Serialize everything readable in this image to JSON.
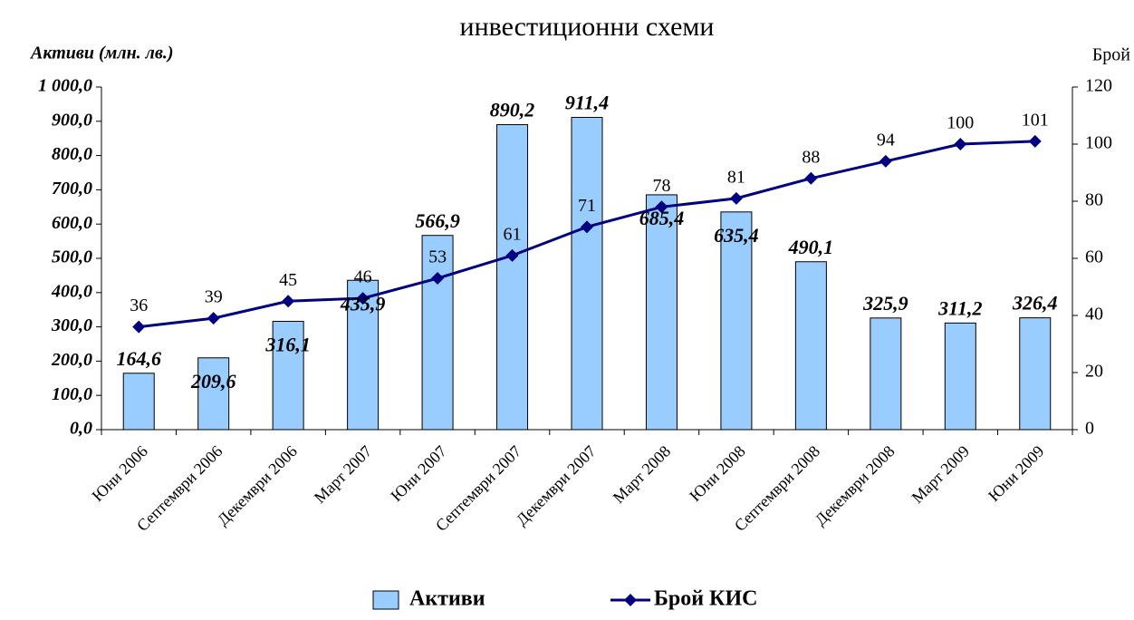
{
  "chart_data": {
    "type": "bar_line",
    "title": "инвестиционни схеми",
    "y_label": "Активи (млн. лв.)",
    "y2_label": "Брой",
    "categories": [
      "Юни 2006",
      "Септември 2006",
      "Декември 2006",
      "Март 2007",
      "Юни 2007",
      "Септември 2007",
      "Декември 2007",
      "Март 2008",
      "Юни 2008",
      "Септември 2008",
      "Декември 2008",
      "Март 2009",
      "Юни 2009"
    ],
    "series": [
      {
        "name": "Активи",
        "type": "bar",
        "color": "#99ccff",
        "values": [
          164.6,
          209.6,
          316.1,
          435.9,
          566.9,
          890.2,
          911.4,
          685.4,
          635.4,
          490.1,
          325.9,
          311.2,
          326.4
        ],
        "value_labels": [
          "164,6",
          "209,6",
          "316,1",
          "435,9",
          "566,9",
          "890,2",
          "911,4",
          "685,4",
          "635,4",
          "490,1",
          "325,9",
          "311,2",
          "326,4"
        ]
      },
      {
        "name": "Брой КИС",
        "type": "line",
        "axis": "y2",
        "color": "#000080",
        "values": [
          36,
          39,
          45,
          46,
          53,
          61,
          71,
          78,
          81,
          88,
          94,
          100,
          101
        ]
      }
    ],
    "ylim": [
      0,
      1000
    ],
    "yticks": [
      {
        "value": 0,
        "label": "0,0"
      },
      {
        "value": 100,
        "label": "100,0"
      },
      {
        "value": 200,
        "label": "200,0"
      },
      {
        "value": 300,
        "label": "300,0"
      },
      {
        "value": 400,
        "label": "400,0"
      },
      {
        "value": 500,
        "label": "500,0"
      },
      {
        "value": 600,
        "label": "600,0"
      },
      {
        "value": 700,
        "label": "700,0"
      },
      {
        "value": 800,
        "label": "800,0"
      },
      {
        "value": 900,
        "label": "900,0"
      },
      {
        "value": 1000,
        "label": "1 000,0"
      }
    ],
    "y2lim": [
      0,
      120
    ],
    "y2ticks": [
      0,
      20,
      40,
      60,
      80,
      100,
      120
    ],
    "legend": "bottom"
  }
}
